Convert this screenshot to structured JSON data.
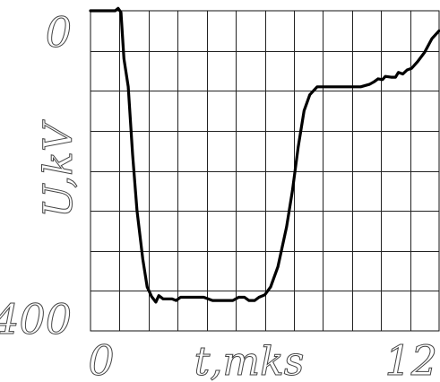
{
  "chart_data": {
    "type": "line",
    "title": "",
    "xlabel": "t,mks",
    "ylabel": "U,kV",
    "xlim": [
      0,
      12
    ],
    "ylim": [
      0,
      400
    ],
    "y_inverted": true,
    "grid": true,
    "x_tick_labels": [
      {
        "value": 0,
        "label": "0"
      },
      {
        "value": 12,
        "label": "12"
      }
    ],
    "y_tick_labels": [
      {
        "value": 0,
        "label": "0"
      },
      {
        "value": 400,
        "label": "400"
      }
    ],
    "x_grid_step": 1,
    "y_grid_step": 50,
    "series": [
      {
        "color": "#000000",
        "points": [
          [
            0.0,
            0
          ],
          [
            0.85,
            0
          ],
          [
            0.95,
            -3
          ],
          [
            1.05,
            2
          ],
          [
            1.15,
            60
          ],
          [
            1.3,
            95
          ],
          [
            1.45,
            180
          ],
          [
            1.6,
            250
          ],
          [
            1.8,
            310
          ],
          [
            1.95,
            345
          ],
          [
            2.1,
            357
          ],
          [
            2.25,
            364
          ],
          [
            2.35,
            356
          ],
          [
            2.5,
            360
          ],
          [
            2.8,
            360
          ],
          [
            2.95,
            362
          ],
          [
            3.1,
            358
          ],
          [
            3.5,
            358
          ],
          [
            3.9,
            358
          ],
          [
            4.2,
            362
          ],
          [
            4.5,
            362
          ],
          [
            4.9,
            362
          ],
          [
            5.1,
            358
          ],
          [
            5.3,
            358
          ],
          [
            5.45,
            362
          ],
          [
            5.65,
            362
          ],
          [
            5.8,
            358
          ],
          [
            6.0,
            355
          ],
          [
            6.2,
            345
          ],
          [
            6.45,
            320
          ],
          [
            6.75,
            270
          ],
          [
            6.95,
            225
          ],
          [
            7.15,
            170
          ],
          [
            7.35,
            125
          ],
          [
            7.55,
            105
          ],
          [
            7.8,
            95
          ],
          [
            8.2,
            95
          ],
          [
            8.9,
            95
          ],
          [
            9.3,
            95
          ],
          [
            9.6,
            92
          ],
          [
            9.75,
            89
          ],
          [
            9.9,
            85
          ],
          [
            10.05,
            86
          ],
          [
            10.15,
            82
          ],
          [
            10.35,
            83
          ],
          [
            10.5,
            83
          ],
          [
            10.6,
            77
          ],
          [
            10.75,
            79
          ],
          [
            10.9,
            74
          ],
          [
            11.05,
            72
          ],
          [
            11.25,
            64
          ],
          [
            11.5,
            52
          ],
          [
            11.75,
            35
          ],
          [
            12.0,
            25
          ]
        ]
      }
    ]
  }
}
